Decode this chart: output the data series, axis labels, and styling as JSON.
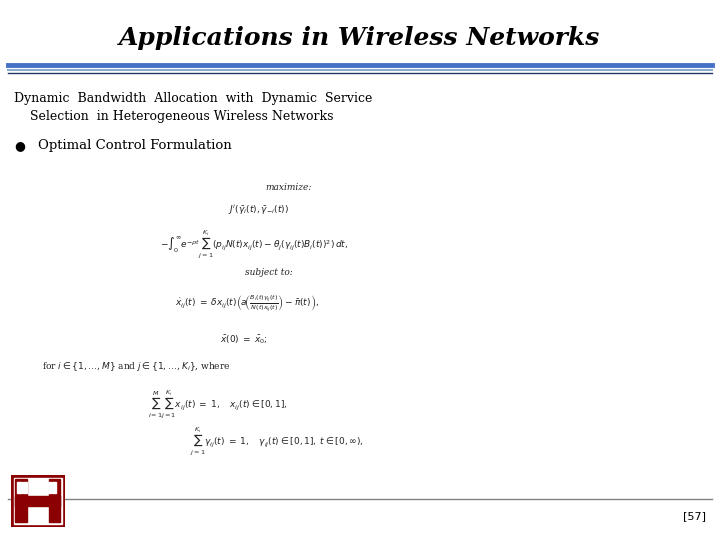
{
  "title": "Applications in Wireless Networks",
  "title_fontsize": 18,
  "title_color": "#000000",
  "subtitle_line1": "Dynamic  Bandwidth  Allocation  with  Dynamic  Service",
  "subtitle_line2": "    Selection  in Heterogeneous Wireless Networks",
  "bullet_text": "Optimal Control Formulation",
  "page_number": "[57]",
  "bg_color": "#ffffff",
  "header_line_color1": "#4472c4",
  "header_line_color2": "#8eaacc",
  "header_line_color3": "#1f3864",
  "footer_line_color": "#808080"
}
